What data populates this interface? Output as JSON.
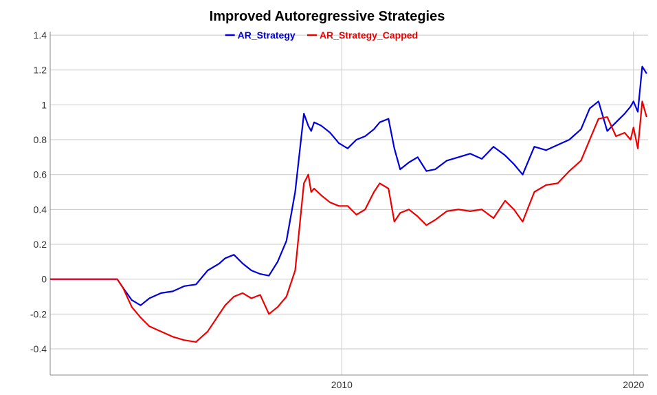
{
  "chart_data": {
    "type": "line",
    "title": "Improved Autoregressive Strategies",
    "xlabel": "",
    "ylabel": "",
    "x_ticks": [
      "2010",
      "2020"
    ],
    "y_ticks": [
      "1.4",
      "1.2",
      "1",
      "0.8",
      "0.6",
      "0.4",
      "0.2",
      "0",
      "-0.2",
      "-0.4"
    ],
    "xlim": [
      2000.0,
      2020.5
    ],
    "ylim": [
      -0.55,
      1.42
    ],
    "grid": true,
    "legend_position": "top",
    "x": [
      2000.0,
      2002.3,
      2002.5,
      2002.8,
      2003.1,
      2003.4,
      2003.8,
      2004.2,
      2004.6,
      2005.0,
      2005.4,
      2005.8,
      2006.0,
      2006.3,
      2006.6,
      2006.9,
      2007.2,
      2007.5,
      2007.8,
      2008.1,
      2008.4,
      2008.7,
      2008.85,
      2008.95,
      2009.05,
      2009.3,
      2009.6,
      2009.9,
      2010.2,
      2010.5,
      2010.8,
      2011.1,
      2011.3,
      2011.6,
      2011.8,
      2012.0,
      2012.3,
      2012.6,
      2012.9,
      2013.2,
      2013.6,
      2014.0,
      2014.4,
      2014.8,
      2015.2,
      2015.6,
      2015.9,
      2016.2,
      2016.6,
      2017.0,
      2017.4,
      2017.8,
      2018.2,
      2018.5,
      2018.8,
      2019.1,
      2019.4,
      2019.7,
      2019.9,
      2020.0,
      2020.15,
      2020.3,
      2020.45
    ],
    "series": [
      {
        "name": "AR_Strategy",
        "color": "#0000dd",
        "values": [
          0.0,
          0.0,
          -0.05,
          -0.12,
          -0.15,
          -0.11,
          -0.08,
          -0.07,
          -0.04,
          -0.03,
          0.05,
          0.09,
          0.12,
          0.14,
          0.09,
          0.05,
          0.03,
          0.02,
          0.1,
          0.22,
          0.5,
          0.95,
          0.88,
          0.85,
          0.9,
          0.88,
          0.84,
          0.78,
          0.75,
          0.8,
          0.82,
          0.86,
          0.9,
          0.92,
          0.75,
          0.63,
          0.67,
          0.7,
          0.62,
          0.63,
          0.68,
          0.7,
          0.72,
          0.69,
          0.76,
          0.71,
          0.66,
          0.6,
          0.76,
          0.74,
          0.77,
          0.8,
          0.86,
          0.98,
          1.02,
          0.85,
          0.9,
          0.95,
          0.99,
          1.02,
          0.96,
          1.22,
          1.18
        ]
      },
      {
        "name": "AR_Strategy_Capped",
        "color": "#ee0000",
        "values": [
          0.0,
          0.0,
          -0.05,
          -0.16,
          -0.22,
          -0.27,
          -0.3,
          -0.33,
          -0.35,
          -0.36,
          -0.3,
          -0.2,
          -0.15,
          -0.1,
          -0.08,
          -0.11,
          -0.09,
          -0.2,
          -0.16,
          -0.1,
          0.05,
          0.55,
          0.6,
          0.5,
          0.52,
          0.48,
          0.44,
          0.42,
          0.42,
          0.37,
          0.4,
          0.5,
          0.55,
          0.52,
          0.33,
          0.38,
          0.4,
          0.36,
          0.31,
          0.34,
          0.39,
          0.4,
          0.39,
          0.4,
          0.35,
          0.45,
          0.4,
          0.33,
          0.5,
          0.54,
          0.55,
          0.62,
          0.68,
          0.8,
          0.92,
          0.93,
          0.82,
          0.84,
          0.8,
          0.87,
          0.75,
          1.02,
          0.93
        ]
      }
    ]
  }
}
